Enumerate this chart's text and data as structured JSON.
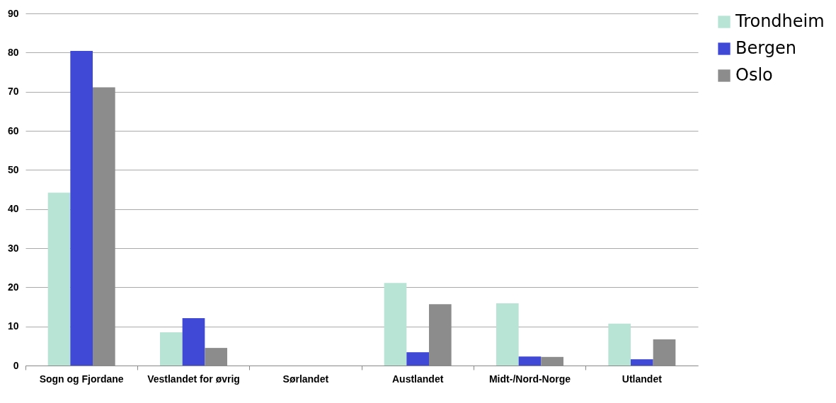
{
  "chart_data": {
    "type": "bar",
    "categories": [
      "Sogn og Fjordane",
      "Vestlandet for øvrig",
      "Sørlandet",
      "Austlandet",
      "Midt-/Nord-Norge",
      "Utlandet"
    ],
    "series": [
      {
        "name": "Trondheim",
        "color": "#b7e4d4",
        "values": [
          44.2,
          8.5,
          0,
          21.1,
          15.9,
          10.7
        ]
      },
      {
        "name": "Bergen",
        "color": "#4049d6",
        "values": [
          80.4,
          12.1,
          0,
          3.4,
          2.3,
          1.6
        ]
      },
      {
        "name": "Oslo",
        "color": "#8c8c8c",
        "values": [
          71.1,
          4.5,
          0,
          15.7,
          2.2,
          6.7
        ]
      }
    ],
    "ylim": [
      0,
      90
    ],
    "yticks": [
      0,
      10,
      20,
      30,
      40,
      50,
      60,
      70,
      80,
      90
    ],
    "grid": "y",
    "legend": "right"
  }
}
